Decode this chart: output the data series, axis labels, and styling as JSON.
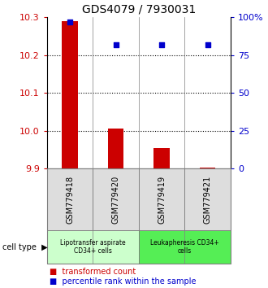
{
  "title": "GDS4079 / 7930031",
  "samples": [
    "GSM779418",
    "GSM779420",
    "GSM779419",
    "GSM779421"
  ],
  "transformed_counts": [
    10.29,
    10.005,
    9.955,
    9.902
  ],
  "percentile_ranks": [
    97,
    82,
    82,
    82
  ],
  "ylim_left": [
    9.9,
    10.3
  ],
  "ylim_right": [
    0,
    100
  ],
  "yticks_left": [
    9.9,
    10.0,
    10.1,
    10.2,
    10.3
  ],
  "yticks_right": [
    0,
    25,
    50,
    75,
    100
  ],
  "ytick_labels_right": [
    "0",
    "25",
    "50",
    "75",
    "100%"
  ],
  "bar_color": "#cc0000",
  "dot_color": "#0000cc",
  "baseline": 9.9,
  "cell_type_box_color_1": "#ccffcc",
  "cell_type_box_color_2": "#55ee55",
  "tick_color_left": "#cc0000",
  "tick_color_right": "#0000cc",
  "sample_box_color": "#dddddd",
  "cell_types": [
    {
      "label": "Lipotransfer aspirate\nCD34+ cells",
      "start": 0,
      "end": 2
    },
    {
      "label": "Leukapheresis CD34+\ncells",
      "start": 2,
      "end": 4
    }
  ]
}
